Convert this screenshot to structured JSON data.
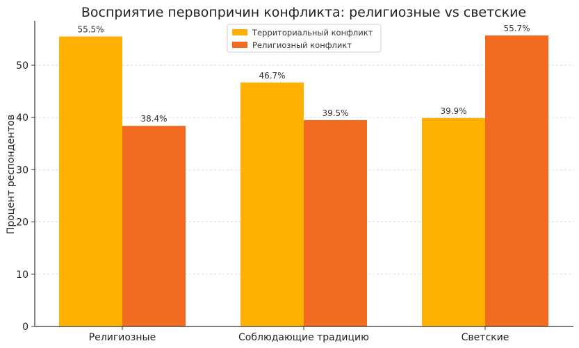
{
  "chart_data": {
    "type": "bar",
    "title": "Восприятие первопричин конфликта: религиозные vs светские",
    "xlabel": "",
    "ylabel": "Процент респондентов",
    "categories": [
      "Религиозные",
      "Соблюдающие традицию",
      "Светские"
    ],
    "series": [
      {
        "name": "Территориальный конфликт",
        "color": "#FFB000",
        "values": [
          55.5,
          46.7,
          39.9
        ],
        "labels": [
          "55.5%",
          "46.7%",
          "39.9%"
        ]
      },
      {
        "name": "Религиозный конфликт",
        "color": "#F26B21",
        "values": [
          38.4,
          39.5,
          55.7
        ],
        "labels": [
          "38.4%",
          "39.5%",
          "55.7%"
        ]
      }
    ],
    "ylim": [
      0,
      58.5
    ],
    "yticks": [
      0,
      10,
      20,
      30,
      40,
      50
    ],
    "ytick_labels": [
      "0",
      "10",
      "20",
      "30",
      "40",
      "50"
    ],
    "grid": true,
    "legend_position": "top-center"
  }
}
